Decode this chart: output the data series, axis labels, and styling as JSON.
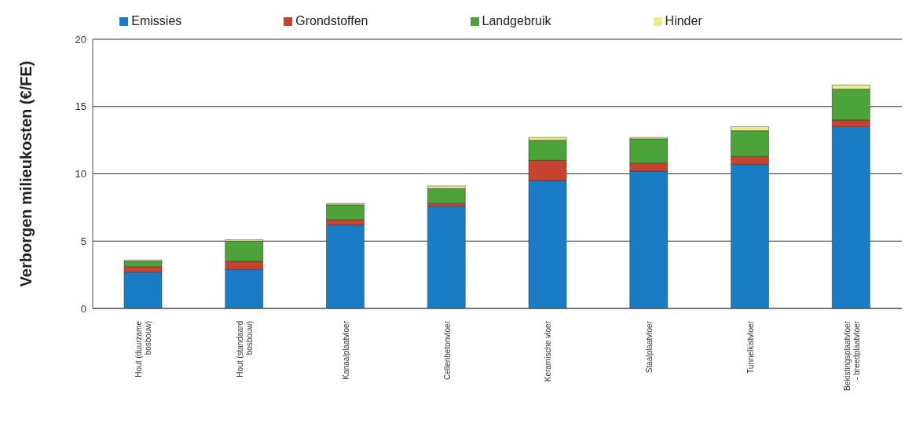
{
  "chart_data": {
    "type": "bar",
    "stacked": true,
    "ylabel": "Verborgen milieukosten (€/FE)",
    "categories": [
      "Hout (duurzame bosbouw)",
      "Hout (standaard bosbouw)",
      "Kanaalplaatvloer",
      "Cellenbetonvloer",
      "Keramische vloer",
      "Staalplaatvloer",
      "Tunnelkistvloer",
      "Bekistingsplaatvloer - breedplaatvloer"
    ],
    "series": [
      {
        "name": "Emissies",
        "color": "#1a7cc4",
        "values": [
          2.7,
          2.9,
          6.2,
          7.6,
          9.5,
          10.2,
          10.7,
          13.5
        ]
      },
      {
        "name": "Grondstoffen",
        "color": "#c8432f",
        "values": [
          0.4,
          0.6,
          0.4,
          0.2,
          1.5,
          0.6,
          0.6,
          0.5
        ]
      },
      {
        "name": "Landgebruik",
        "color": "#4ca33a",
        "values": [
          0.4,
          1.5,
          1.1,
          1.1,
          1.5,
          1.8,
          1.9,
          2.3
        ]
      },
      {
        "name": "Hinder",
        "color": "#e8ee8a",
        "values": [
          0.1,
          0.1,
          0.1,
          0.2,
          0.2,
          0.1,
          0.3,
          0.3
        ]
      }
    ],
    "ylim": [
      0,
      20
    ],
    "yticks": [
      0,
      5,
      10,
      15,
      20
    ],
    "grid": "y",
    "legend": "top"
  }
}
